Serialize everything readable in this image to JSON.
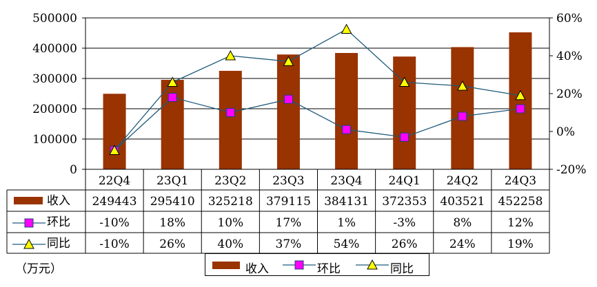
{
  "chart_data": {
    "type": "bar",
    "categories": [
      "22Q4",
      "23Q1",
      "23Q2",
      "23Q3",
      "23Q4",
      "24Q1",
      "24Q2",
      "24Q3"
    ],
    "series": [
      {
        "name": "收入",
        "type": "bar",
        "axis": "left",
        "values": [
          249443,
          295410,
          325218,
          379115,
          384131,
          372353,
          403521,
          452258
        ],
        "labels": [
          "249443",
          "295410",
          "325218",
          "379115",
          "384131",
          "372353",
          "403521",
          "452258"
        ],
        "color": "#993300"
      },
      {
        "name": "环比",
        "type": "line",
        "axis": "right",
        "values": [
          -10,
          18,
          10,
          17,
          1,
          -3,
          8,
          12
        ],
        "labels": [
          "-10%",
          "18%",
          "10%",
          "17%",
          "1%",
          "-3%",
          "8%",
          "12%"
        ],
        "color": "#ff00ff",
        "line_color": "#1f5a7a",
        "marker": "square"
      },
      {
        "name": "同比",
        "type": "line",
        "axis": "right",
        "values": [
          -10,
          26,
          40,
          37,
          54,
          26,
          24,
          19
        ],
        "labels": [
          "-10%",
          "26%",
          "40%",
          "37%",
          "54%",
          "26%",
          "24%",
          "19%"
        ],
        "color": "#ffff00",
        "line_color": "#1f5a7a",
        "marker": "triangle"
      }
    ],
    "y_left": {
      "range": [
        0,
        500000
      ],
      "ticks": [
        "0",
        "100000",
        "200000",
        "300000",
        "400000",
        "500000"
      ]
    },
    "y_right": {
      "range": [
        -20,
        60
      ],
      "ticks": [
        "-20%",
        "0%",
        "20%",
        "40%",
        "60%"
      ]
    },
    "grid": true,
    "data_table": true,
    "legend_position": "bottom"
  },
  "unit_label": "（万元）"
}
